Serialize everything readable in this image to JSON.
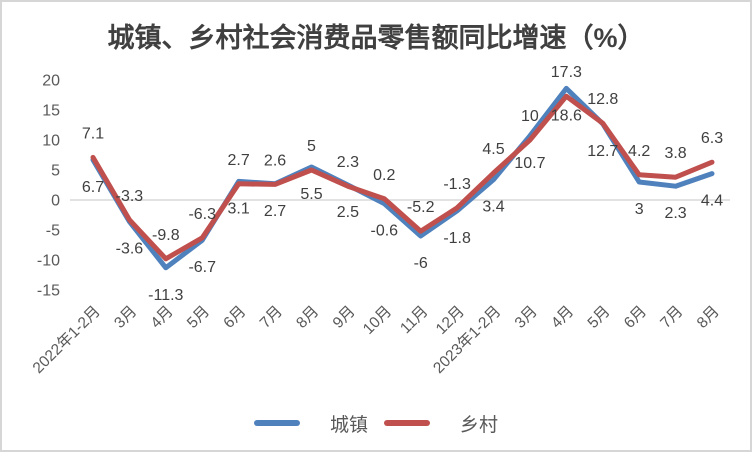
{
  "chart_data": {
    "type": "line",
    "title": "城镇、乡村社会消费品零售额同比增速（%）",
    "categories": [
      "2022年1-2月",
      "3月",
      "4月",
      "5月",
      "6月",
      "7月",
      "8月",
      "9月",
      "10月",
      "11月",
      "12月",
      "2023年1-2月",
      "3月",
      "4月",
      "5月",
      "6月",
      "7月",
      "8月"
    ],
    "series": [
      {
        "name": "城镇",
        "color": "#4F81BD",
        "label_position": "below",
        "values": [
          6.7,
          -3.6,
          -11.3,
          -6.7,
          3.1,
          2.7,
          5.5,
          2.5,
          -0.6,
          -6,
          -1.8,
          3.4,
          10.7,
          18.6,
          12.7,
          3,
          2.3,
          4.4
        ]
      },
      {
        "name": "乡村",
        "color": "#C0504D",
        "label_position": "above",
        "values": [
          7.1,
          -3.3,
          -9.8,
          -6.3,
          2.7,
          2.6,
          5,
          2.3,
          0.2,
          -5.2,
          -1.3,
          4.5,
          10,
          17.3,
          12.8,
          4.2,
          3.8,
          6.3
        ]
      }
    ],
    "ylim": [
      -15,
      20
    ],
    "yticks": [
      20,
      15,
      10,
      5,
      0,
      -5,
      -10,
      -15
    ],
    "grid": "zero-line-only",
    "legend_position": "bottom",
    "colors": {
      "gridline": "#D9D9D9",
      "axis_text": "#595959",
      "data_label_text": "#404040",
      "title_text": "#404040"
    }
  }
}
